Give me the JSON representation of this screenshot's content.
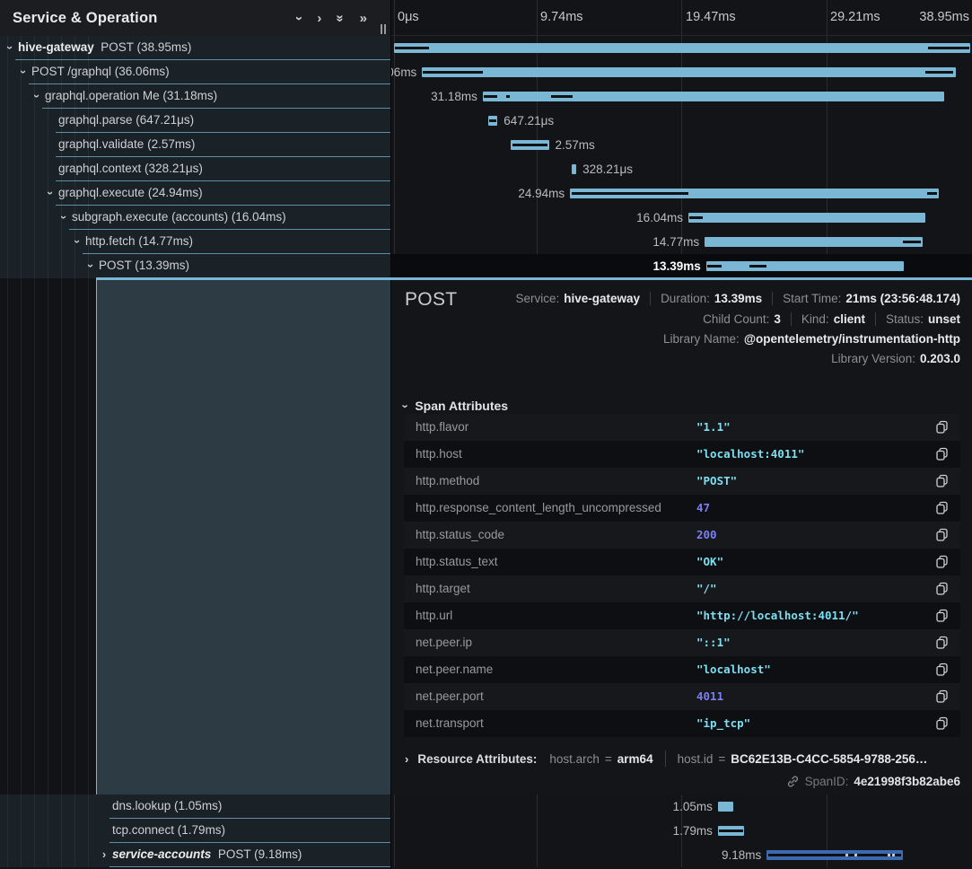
{
  "left_header": {
    "title": "Service & Operation"
  },
  "header_icons": [
    {
      "name": "collapse-one-icon",
      "glyph": "down"
    },
    {
      "name": "expand-one-icon",
      "glyph": "right"
    },
    {
      "name": "collapse-all-icon",
      "glyph": "double-down"
    },
    {
      "name": "expand-all-icon",
      "glyph": "double-right"
    }
  ],
  "timeline_ticks": [
    "0μs",
    "9.74ms",
    "19.47ms",
    "29.21ms",
    "38.95ms"
  ],
  "timeline": {
    "total_ms": 38.95
  },
  "spans": [
    {
      "service": "hive-gateway",
      "italic": false,
      "name": "POST",
      "dur": "38.95ms",
      "level": 0,
      "chev": "down",
      "start": 0.0,
      "len": 38.95,
      "side": "none",
      "kind": "light",
      "sel": false,
      "slot": 0,
      "dashes": [
        [
          0.05,
          2.35
        ],
        [
          36.1,
          38.9
        ]
      ]
    },
    {
      "service": null,
      "name": "POST /graphql",
      "dur": "36.06ms",
      "level": 1,
      "chev": "down",
      "start": 1.9,
      "len": 36.06,
      "side": "left",
      "kind": "light",
      "sel": false,
      "slot": 1,
      "dashes": [
        [
          1.95,
          6.0
        ],
        [
          35.9,
          37.8
        ]
      ]
    },
    {
      "service": null,
      "name": "graphql.operation Me",
      "dur": "31.18ms",
      "level": 2,
      "chev": "down",
      "start": 6.0,
      "len": 31.18,
      "side": "left",
      "kind": "light",
      "sel": false,
      "slot": 2,
      "dashes": [
        [
          6.05,
          6.95
        ],
        [
          7.6,
          7.85
        ],
        [
          10.6,
          12.05
        ]
      ]
    },
    {
      "service": null,
      "name": "graphql.parse",
      "dur": "647.21μs",
      "level": 3,
      "chev": null,
      "start": 6.35,
      "len": 0.647,
      "side": "right",
      "kind": "light",
      "sel": false,
      "slot": 3,
      "dashes": [
        [
          6.42,
          6.92
        ]
      ]
    },
    {
      "service": null,
      "name": "graphql.validate",
      "dur": "2.57ms",
      "level": 3,
      "chev": null,
      "start": 7.9,
      "len": 2.57,
      "side": "right",
      "kind": "light",
      "sel": false,
      "slot": 4,
      "dashes": [
        [
          7.98,
          10.38
        ]
      ]
    },
    {
      "service": null,
      "name": "graphql.context",
      "dur": "328.21μs",
      "level": 3,
      "chev": null,
      "start": 12.0,
      "len": 0.328,
      "side": "right",
      "kind": "light",
      "sel": false,
      "slot": 5,
      "dashes": []
    },
    {
      "service": null,
      "name": "graphql.execute",
      "dur": "24.94ms",
      "level": 3,
      "chev": "down",
      "start": 11.9,
      "len": 24.94,
      "side": "left",
      "kind": "light",
      "sel": false,
      "slot": 6,
      "dashes": [
        [
          12.0,
          19.9
        ],
        [
          36.05,
          36.7
        ]
      ]
    },
    {
      "service": null,
      "name": "subgraph.execute (accounts)",
      "dur": "16.04ms",
      "level": 4,
      "chev": "down",
      "start": 19.9,
      "len": 16.04,
      "side": "left",
      "kind": "light",
      "sel": false,
      "slot": 7,
      "dashes": [
        [
          19.95,
          20.85
        ]
      ]
    },
    {
      "service": null,
      "name": "http.fetch",
      "dur": "14.77ms",
      "level": 5,
      "chev": "down",
      "start": 21.0,
      "len": 14.77,
      "side": "left",
      "kind": "light",
      "sel": false,
      "slot": 8,
      "dashes": [
        [
          34.4,
          35.6
        ]
      ]
    },
    {
      "service": null,
      "name": "POST",
      "dur": "13.39ms",
      "level": 6,
      "chev": "down",
      "start": 21.1,
      "len": 13.39,
      "side": "left",
      "kind": "light",
      "sel": true,
      "slot": 9,
      "dashes": [
        [
          21.2,
          22.15
        ],
        [
          24.0,
          25.2
        ]
      ]
    },
    {
      "service": null,
      "name": "dns.lookup",
      "dur": "1.05ms",
      "level": 7,
      "chev": null,
      "start": 21.9,
      "len": 1.05,
      "side": "left",
      "kind": "light",
      "sel": false,
      "slot": 10,
      "dashes": []
    },
    {
      "service": null,
      "name": "tcp.connect",
      "dur": "1.79ms",
      "level": 7,
      "chev": null,
      "start": 21.9,
      "len": 1.79,
      "side": "left",
      "kind": "light",
      "sel": false,
      "slot": 11,
      "dashes": [
        [
          21.97,
          23.6
        ]
      ]
    },
    {
      "service": "service-accounts",
      "italic": true,
      "name": "POST",
      "dur": "9.18ms",
      "level": 7,
      "chev": "right",
      "start": 25.2,
      "len": 9.18,
      "side": "left",
      "kind": "blue",
      "sel": false,
      "slot": 12,
      "dashes": [
        [
          25.32,
          34.28
        ]
      ],
      "dots": [
        30.55,
        31.1,
        33.35,
        33.7
      ]
    }
  ],
  "detail": {
    "title": "POST",
    "meta_line1": [
      {
        "label": "Service:",
        "value": "hive-gateway"
      },
      {
        "label": "Duration:",
        "value": "13.39ms"
      },
      {
        "label": "Start Time:",
        "value": "21ms (23:56:48.174)"
      }
    ],
    "meta_line2": [
      {
        "label": "Child Count:",
        "value": "3"
      },
      {
        "label": "Kind:",
        "value": "client"
      },
      {
        "label": "Status:",
        "value": "unset"
      }
    ],
    "meta_line3": [
      {
        "label": "Library Name:",
        "value": "@opentelemetry/instrumentation-http"
      }
    ],
    "meta_line4": [
      {
        "label": "Library Version:",
        "value": "0.203.0"
      }
    ],
    "span_attributes_title": "Span Attributes",
    "attributes": [
      {
        "key": "http.flavor",
        "value": "\"1.1\"",
        "type": "string"
      },
      {
        "key": "http.host",
        "value": "\"localhost:4011\"",
        "type": "string"
      },
      {
        "key": "http.method",
        "value": "\"POST\"",
        "type": "string"
      },
      {
        "key": "http.response_content_length_uncompressed",
        "value": "47",
        "type": "number"
      },
      {
        "key": "http.status_code",
        "value": "200",
        "type": "number"
      },
      {
        "key": "http.status_text",
        "value": "\"OK\"",
        "type": "string"
      },
      {
        "key": "http.target",
        "value": "\"/\"",
        "type": "string"
      },
      {
        "key": "http.url",
        "value": "\"http://localhost:4011/\"",
        "type": "string"
      },
      {
        "key": "net.peer.ip",
        "value": "\"::1\"",
        "type": "string"
      },
      {
        "key": "net.peer.name",
        "value": "\"localhost\"",
        "type": "string"
      },
      {
        "key": "net.peer.port",
        "value": "4011",
        "type": "number"
      },
      {
        "key": "net.transport",
        "value": "\"ip_tcp\"",
        "type": "string"
      }
    ],
    "resource_title": "Resource Attributes:",
    "resource_attrs": [
      {
        "key": "host.arch",
        "value": "arm64"
      },
      {
        "key": "host.id",
        "value": "BC62E13B-C4CC-5854-9788-256…"
      }
    ],
    "span_id_label": "SpanID:",
    "span_id": "4e21998f3b82abe6"
  },
  "colors": {
    "bar_light": "#7ab7d4",
    "bar_blue": "#3c69b0",
    "accent_line": "#5f8fa8",
    "string_value": "#7cdff2",
    "number_value": "#7b7ef5",
    "selected_bg": "#2c3b44"
  }
}
